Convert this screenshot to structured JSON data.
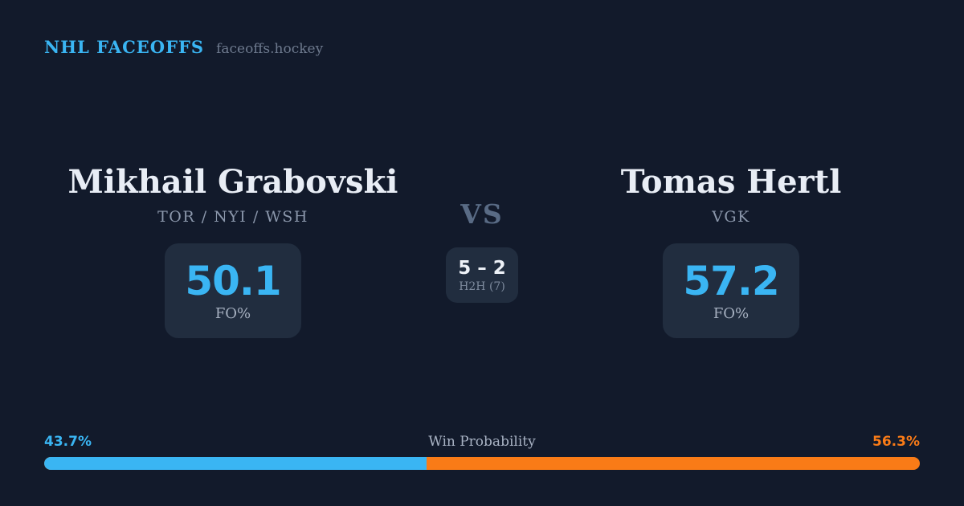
{
  "header": {
    "brand": "NHL FACEOFFS",
    "site": "faceoffs.hockey"
  },
  "matchup": {
    "vs_label": "VS",
    "h2h": {
      "score": "5 – 2",
      "label": "H2H (7)"
    },
    "players": [
      {
        "name": "Mikhail Grabovski",
        "teams": "TOR / NYI / WSH",
        "fo_pct": "50.1",
        "fo_label": "FO%"
      },
      {
        "name": "Tomas Hertl",
        "teams": "VGK",
        "fo_pct": "57.2",
        "fo_label": "FO%"
      }
    ]
  },
  "win_probability": {
    "label": "Win Probability",
    "left_pct": "43.7%",
    "right_pct": "56.3%",
    "left_value": 43.7,
    "right_value": 56.3
  },
  "colors": {
    "background": "#121a2b",
    "panel": "#212d3f",
    "accent_blue": "#3ab5f3",
    "accent_orange": "#f97b17"
  },
  "chart_data": {
    "type": "bar",
    "title": "Win Probability",
    "categories": [
      "Mikhail Grabovski",
      "Tomas Hertl"
    ],
    "values": [
      43.7,
      56.3
    ],
    "xlabel": "",
    "ylabel": "Win Probability (%)",
    "ylim": [
      0,
      100
    ]
  }
}
